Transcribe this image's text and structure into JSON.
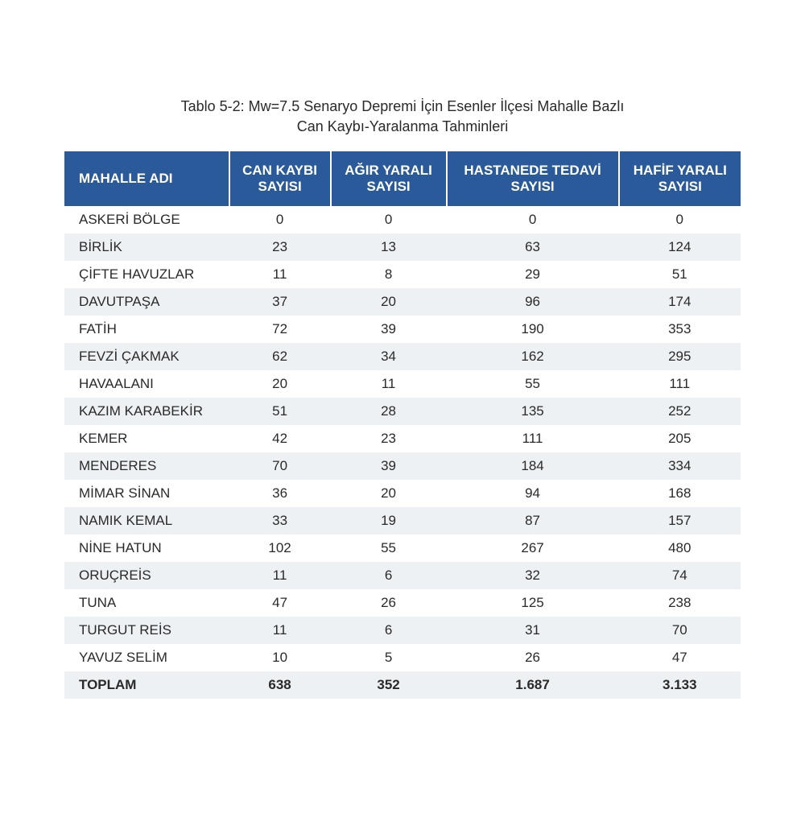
{
  "title_line1": "Tablo 5-2: Mw=7.5 Senaryo Depremi İçin Esenler İlçesi Mahalle Bazlı",
  "title_line2": "Can Kaybı-Yaralanma Tahminleri",
  "table": {
    "type": "table",
    "header_bg": "#2b5a9a",
    "header_fg": "#ffffff",
    "row_alt_bg": "#eef1f4",
    "row_bg": "#ffffff",
    "text_color": "#2a2a2a",
    "font_size": 17,
    "columns": [
      "MAHALLE ADI",
      "CAN KAYBI SAYISI",
      "AĞIR YARALI SAYISI",
      "HASTANEDE TEDAVİ SAYISI",
      "HAFİF YARALI SAYISI"
    ],
    "rows": [
      [
        "ASKERİ BÖLGE",
        "0",
        "0",
        "0",
        "0"
      ],
      [
        "BİRLİK",
        "23",
        "13",
        "63",
        "124"
      ],
      [
        "ÇİFTE HAVUZLAR",
        "11",
        "8",
        "29",
        "51"
      ],
      [
        "DAVUTPAŞA",
        "37",
        "20",
        "96",
        "174"
      ],
      [
        "FATİH",
        "72",
        "39",
        "190",
        "353"
      ],
      [
        "FEVZİ ÇAKMAK",
        "62",
        "34",
        "162",
        "295"
      ],
      [
        "HAVAALANI",
        "20",
        "11",
        "55",
        "111"
      ],
      [
        "KAZIM KARABEKİR",
        "51",
        "28",
        "135",
        "252"
      ],
      [
        "KEMER",
        "42",
        "23",
        "111",
        "205"
      ],
      [
        "MENDERES",
        "70",
        "39",
        "184",
        "334"
      ],
      [
        "MİMAR SİNAN",
        "36",
        "20",
        "94",
        "168"
      ],
      [
        "NAMIK KEMAL",
        "33",
        "19",
        "87",
        "157"
      ],
      [
        "NİNE HATUN",
        "102",
        "55",
        "267",
        "480"
      ],
      [
        "ORUÇREİS",
        "11",
        "6",
        "32",
        "74"
      ],
      [
        "TUNA",
        "47",
        "26",
        "125",
        "238"
      ],
      [
        "TURGUT REİS",
        "11",
        "6",
        "31",
        "70"
      ],
      [
        "YAVUZ SELİM",
        "10",
        "5",
        "26",
        "47"
      ]
    ],
    "total": [
      "TOPLAM",
      "638",
      "352",
      "1.687",
      "3.133"
    ]
  }
}
